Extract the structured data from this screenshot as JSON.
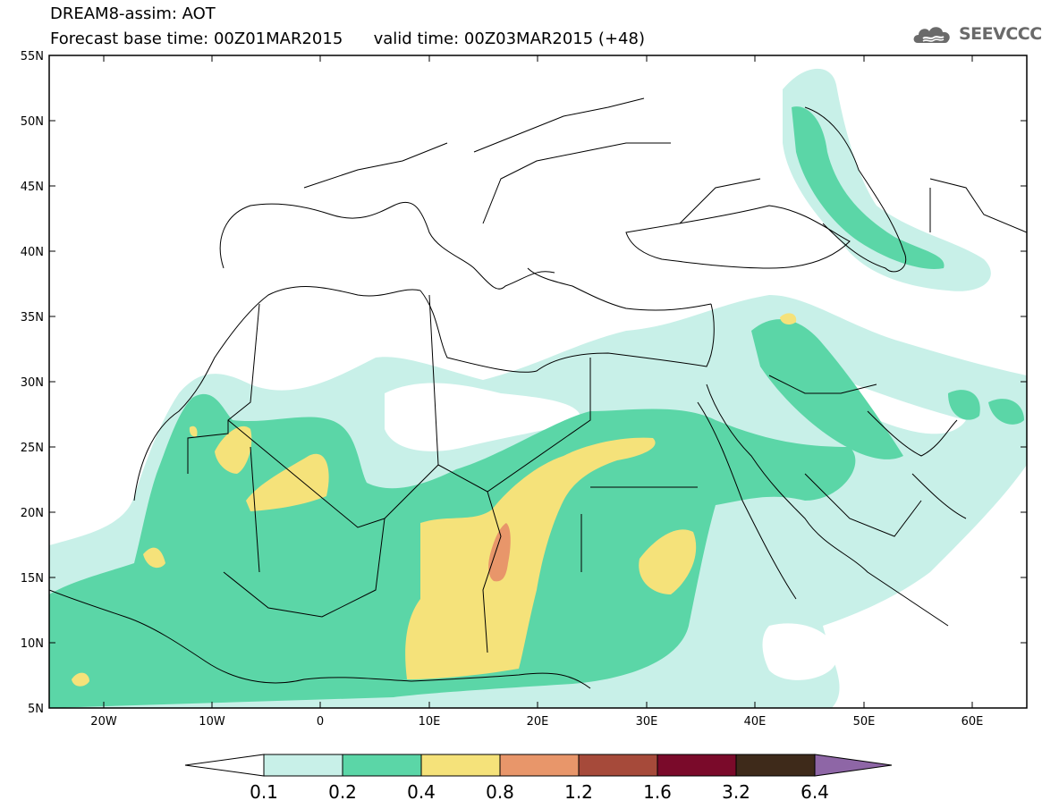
{
  "header": {
    "title_line1": "DREAM8-assim: AOT",
    "base_label": "Forecast base time: 00Z01MAR2015",
    "valid_label": "valid time: 00Z03MAR2015 (+48)",
    "logo_text": "SEEVCCC",
    "logo_icon": "cloud-logo-icon"
  },
  "map": {
    "lon_range": [
      -25,
      65
    ],
    "lat_range": [
      5,
      55
    ],
    "lat_ticks": [
      "55N",
      "50N",
      "45N",
      "40N",
      "35N",
      "30N",
      "25N",
      "20N",
      "15N",
      "10N",
      "5N"
    ],
    "lon_ticks": [
      "20W",
      "10W",
      "0",
      "10E",
      "20E",
      "30E",
      "40E",
      "50E",
      "60E"
    ],
    "variable": "AOT"
  },
  "legend": {
    "labels": [
      "0.1",
      "0.2",
      "0.4",
      "0.8",
      "1.2",
      "1.6",
      "3.2",
      "6.4"
    ],
    "colors": [
      "#ffffff",
      "#c8f0e8",
      "#5bd6a7",
      "#f5e27a",
      "#e8966a",
      "#a64a3a",
      "#7a0a2a",
      "#3e2a1a",
      "#8e66a6"
    ]
  }
}
